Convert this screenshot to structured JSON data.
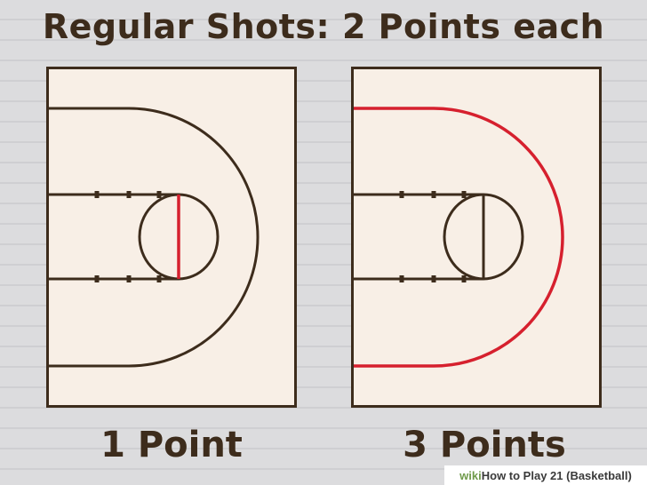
{
  "headline": "Regular Shots: 2 Points each",
  "panels": [
    {
      "caption": "1 Point",
      "highlight": "free-throw-line"
    },
    {
      "caption": "3 Points",
      "highlight": "three-point-arc"
    }
  ],
  "watermark": {
    "brand": "wiki",
    "title": "How to Play 21 (Basketball)"
  },
  "colors": {
    "line": "#3d2c1c",
    "highlight": "#d6202e",
    "court": "#f8efe6"
  }
}
